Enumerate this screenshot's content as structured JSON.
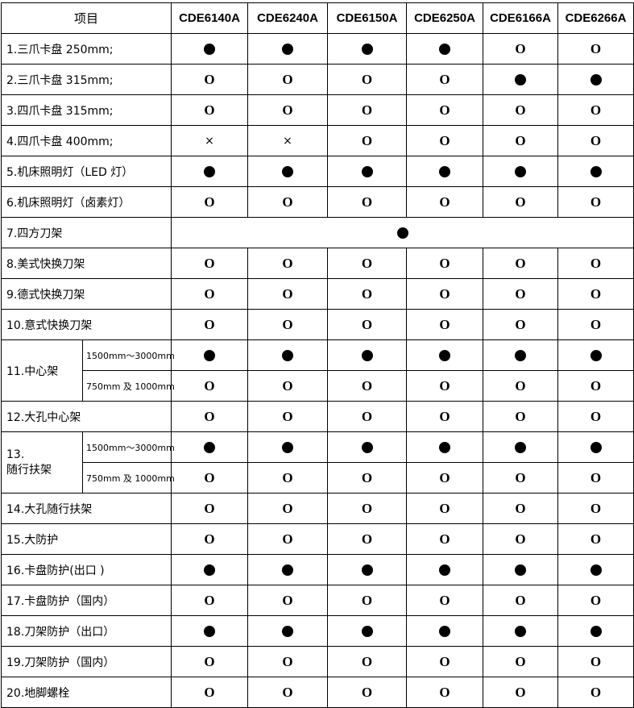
{
  "header": {
    "item": "项目",
    "models": [
      "CDE6140A",
      "CDE6240A",
      "CDE6150A",
      "CDE6250A",
      "CDE6166A",
      "CDE6266A"
    ]
  },
  "legend_symbols": {
    "F": "●",
    "O": "O",
    "X": "×"
  },
  "rows": [
    {
      "label": "1.三爪卡盘 250mm;",
      "marks": [
        "F",
        "F",
        "F",
        "F",
        "O",
        "O"
      ]
    },
    {
      "label": "2.三爪卡盘 315mm;",
      "marks": [
        "O",
        "O",
        "O",
        "O",
        "F",
        "F"
      ]
    },
    {
      "label": "3.四爪卡盘 315mm;",
      "marks": [
        "O",
        "O",
        "O",
        "O",
        "O",
        "O"
      ]
    },
    {
      "label": "4.四爪卡盘 400mm;",
      "marks": [
        "X",
        "X",
        "O",
        "O",
        "O",
        "O"
      ]
    },
    {
      "label": "5.机床照明灯（LED 灯）",
      "marks": [
        "F",
        "F",
        "F",
        "F",
        "F",
        "F"
      ]
    },
    {
      "label": "6.机床照明灯（卤素灯）",
      "marks": [
        "O",
        "O",
        "O",
        "O",
        "O",
        "O"
      ]
    },
    {
      "label": "7.四方刀架",
      "merged": "F"
    },
    {
      "label": "8.美式快换刀架",
      "marks": [
        "O",
        "O",
        "O",
        "O",
        "O",
        "O"
      ]
    },
    {
      "label": "9.德式快换刀架",
      "marks": [
        "O",
        "O",
        "O",
        "O",
        "O",
        "O"
      ]
    },
    {
      "label": "10.意式快换刀架",
      "marks": [
        "O",
        "O",
        "O",
        "O",
        "O",
        "O"
      ]
    },
    {
      "label": "11.中心架",
      "subs": [
        {
          "label": "1500mm～3000mm",
          "marks": [
            "F",
            "F",
            "F",
            "F",
            "F",
            "F"
          ]
        },
        {
          "label": "750mm 及 1000mm",
          "marks": [
            "O",
            "O",
            "O",
            "O",
            "O",
            "O"
          ]
        }
      ]
    },
    {
      "label": "12.大孔中心架",
      "marks": [
        "O",
        "O",
        "O",
        "O",
        "O",
        "O"
      ]
    },
    {
      "label": "13.\n随行扶架",
      "subs": [
        {
          "label": "1500mm～3000mm",
          "marks": [
            "F",
            "F",
            "F",
            "F",
            "F",
            "F"
          ]
        },
        {
          "label": "750mm 及 1000mm",
          "marks": [
            "O",
            "O",
            "O",
            "O",
            "O",
            "O"
          ]
        }
      ]
    },
    {
      "label": "14.大孔随行扶架",
      "marks": [
        "O",
        "O",
        "O",
        "O",
        "O",
        "O"
      ]
    },
    {
      "label": "15.大防护",
      "marks": [
        "O",
        "O",
        "O",
        "O",
        "O",
        "O"
      ]
    },
    {
      "label": "16.卡盘防护(出口 )",
      "marks": [
        "F",
        "F",
        "F",
        "F",
        "F",
        "F"
      ]
    },
    {
      "label": "17.卡盘防护（国内）",
      "marks": [
        "O",
        "O",
        "O",
        "O",
        "O",
        "O"
      ]
    },
    {
      "label": "18.刀架防护（出口）",
      "marks": [
        "F",
        "F",
        "F",
        "F",
        "F",
        "F"
      ]
    },
    {
      "label": "19.刀架防护（国内）",
      "marks": [
        "O",
        "O",
        "O",
        "O",
        "O",
        "O"
      ]
    },
    {
      "label": "20.地脚螺栓",
      "marks": [
        "O",
        "O",
        "O",
        "O",
        "O",
        "O"
      ]
    }
  ]
}
